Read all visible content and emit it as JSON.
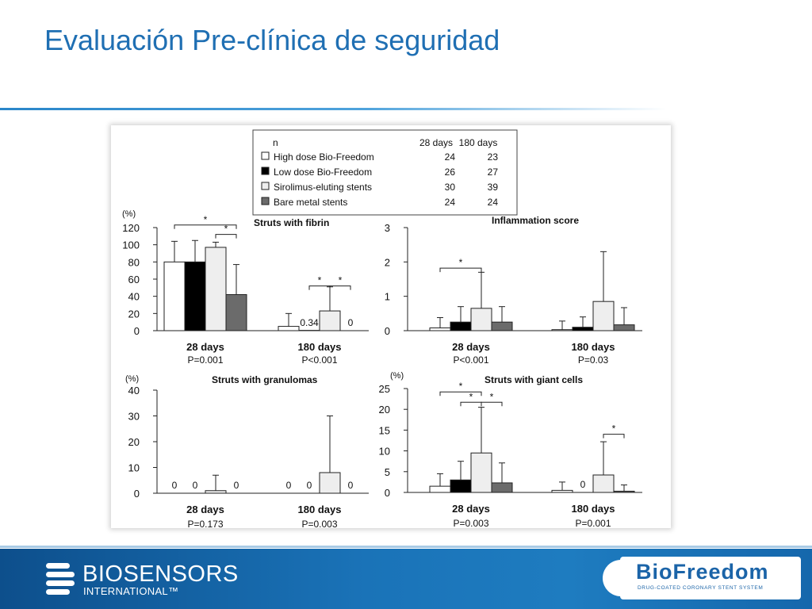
{
  "slide": {
    "title": "Evaluación Pre-clínica de seguridad"
  },
  "footer": {
    "company_name": "BIOSENSORS",
    "company_sub": "INTERNATIONAL™",
    "product_name": "BioFreedom",
    "product_tagline": "DRUG-COATED CORONARY STENT SYSTEM"
  },
  "colors": {
    "title": "#1f6fb3",
    "footer": "#1a73b8",
    "high_dose_fill": "#ffffff",
    "low_dose_fill": "#000000",
    "sirolimus_fill": "#eeeeee",
    "bare_metal_fill": "#6b6b6b"
  },
  "chart_data": [
    {
      "type": "table",
      "title": "",
      "columns": [
        "n",
        "28 days",
        "180 days"
      ],
      "rows": [
        {
          "label": "High dose Bio-Freedom",
          "d28": "24",
          "d180": "23",
          "swatch": "high_dose_fill"
        },
        {
          "label": "Low dose Bio-Freedom",
          "d28": "26",
          "d180": "27",
          "swatch": "low_dose_fill"
        },
        {
          "label": "Sirolimus-eluting stents",
          "d28": "30",
          "d180": "39",
          "swatch": "sirolimus_fill"
        },
        {
          "label": "Bare metal stents",
          "d28": "24",
          "d180": "24",
          "swatch": "bare_metal_fill"
        }
      ]
    },
    {
      "type": "bar",
      "title": "Struts with fibrin",
      "ylabel": "(%)",
      "ylim": [
        0,
        120
      ],
      "yticks": [
        0,
        20,
        40,
        60,
        80,
        100,
        120
      ],
      "categories": [
        "28 days",
        "180 days"
      ],
      "pvalues": [
        "P=0.001",
        "P<0.001"
      ],
      "series": [
        {
          "name": "High dose Bio-Freedom",
          "values": [
            80,
            5
          ],
          "errors": [
            24,
            15
          ]
        },
        {
          "name": "Low dose Bio-Freedom",
          "values": [
            80,
            0.34
          ],
          "errors": [
            25,
            0
          ]
        },
        {
          "name": "Sirolimus-eluting stents",
          "values": [
            97,
            23
          ],
          "errors": [
            6,
            28
          ]
        },
        {
          "name": "Bare metal stents",
          "values": [
            42,
            0
          ],
          "errors": [
            35,
            0
          ]
        }
      ],
      "value_labels": [
        {
          "group": 1,
          "series": 1,
          "text": "0.34"
        },
        {
          "group": 1,
          "series": 3,
          "text": "0"
        }
      ],
      "significance": [
        {
          "group": 0,
          "from": 0,
          "to": 3,
          "y": 123,
          "label": "*"
        },
        {
          "group": 0,
          "from": 2,
          "to": 3,
          "y": 112,
          "label": "*"
        },
        {
          "group": 1,
          "from": 1,
          "to": 2,
          "y": 52,
          "label": "*"
        },
        {
          "group": 1,
          "from": 2,
          "to": 3,
          "y": 52,
          "label": "*"
        }
      ]
    },
    {
      "type": "bar",
      "title": "Inflammation score",
      "ylabel": "",
      "ylim": [
        0,
        3
      ],
      "yticks": [
        0,
        1,
        2,
        3
      ],
      "categories": [
        "28 days",
        "180 days"
      ],
      "pvalues": [
        "P<0.001",
        "P=0.03"
      ],
      "series": [
        {
          "name": "High dose Bio-Freedom",
          "values": [
            0.08,
            0.03
          ],
          "errors": [
            0.3,
            0.25
          ]
        },
        {
          "name": "Low dose Bio-Freedom",
          "values": [
            0.25,
            0.1
          ],
          "errors": [
            0.45,
            0.3
          ]
        },
        {
          "name": "Sirolimus-eluting stents",
          "values": [
            0.65,
            0.85
          ],
          "errors": [
            1.05,
            1.45
          ]
        },
        {
          "name": "Bare metal stents",
          "values": [
            0.25,
            0.17
          ],
          "errors": [
            0.45,
            0.5
          ]
        }
      ],
      "value_labels": [],
      "significance": [
        {
          "group": 0,
          "from": 0,
          "to": 2,
          "y": 1.82,
          "label": "*"
        }
      ]
    },
    {
      "type": "bar",
      "title": "Struts with granulomas",
      "ylabel": "(%)",
      "ylim": [
        0,
        40
      ],
      "yticks": [
        0,
        10,
        20,
        30,
        40
      ],
      "categories": [
        "28 days",
        "180 days"
      ],
      "pvalues": [
        "P=0.173",
        "P=0.003"
      ],
      "series": [
        {
          "name": "High dose Bio-Freedom",
          "values": [
            0,
            0
          ],
          "errors": [
            0,
            0
          ]
        },
        {
          "name": "Low dose Bio-Freedom",
          "values": [
            0,
            0
          ],
          "errors": [
            0,
            0
          ]
        },
        {
          "name": "Sirolimus-eluting stents",
          "values": [
            1,
            8
          ],
          "errors": [
            6,
            22
          ]
        },
        {
          "name": "Bare metal stents",
          "values": [
            0,
            0
          ],
          "errors": [
            0,
            0
          ]
        }
      ],
      "value_labels": [
        {
          "group": 0,
          "series": 0,
          "text": "0"
        },
        {
          "group": 0,
          "series": 1,
          "text": "0"
        },
        {
          "group": 0,
          "series": 3,
          "text": "0"
        },
        {
          "group": 1,
          "series": 0,
          "text": "0"
        },
        {
          "group": 1,
          "series": 1,
          "text": "0"
        },
        {
          "group": 1,
          "series": 3,
          "text": "0"
        }
      ],
      "significance": []
    },
    {
      "type": "bar",
      "title": "Struts with giant cells",
      "ylabel": "(%)",
      "ylim": [
        0,
        25
      ],
      "yticks": [
        0,
        5,
        10,
        15,
        20,
        25
      ],
      "categories": [
        "28 days",
        "180 days"
      ],
      "pvalues": [
        "P=0.003",
        "P=0.001"
      ],
      "series": [
        {
          "name": "High dose Bio-Freedom",
          "values": [
            1.5,
            0.5
          ],
          "errors": [
            3,
            2
          ]
        },
        {
          "name": "Low dose Bio-Freedom",
          "values": [
            3,
            0
          ],
          "errors": [
            4.5,
            0
          ]
        },
        {
          "name": "Sirolimus-eluting stents",
          "values": [
            9.5,
            4.2
          ],
          "errors": [
            11,
            8
          ]
        },
        {
          "name": "Bare metal stents",
          "values": [
            2.3,
            0.3
          ],
          "errors": [
            4.8,
            1.5
          ]
        }
      ],
      "value_labels": [
        {
          "group": 1,
          "series": 1,
          "text": "0"
        }
      ],
      "significance": [
        {
          "group": 0,
          "from": 0,
          "to": 2,
          "y": 24.2,
          "label": "*"
        },
        {
          "group": 0,
          "from": 1,
          "to": 2,
          "y": 21.7,
          "label": "*"
        },
        {
          "group": 0,
          "from": 2,
          "to": 3,
          "y": 21.7,
          "label": "*"
        },
        {
          "group": 1,
          "from": 2,
          "to": 3,
          "y": 14,
          "label": "*"
        }
      ]
    }
  ]
}
